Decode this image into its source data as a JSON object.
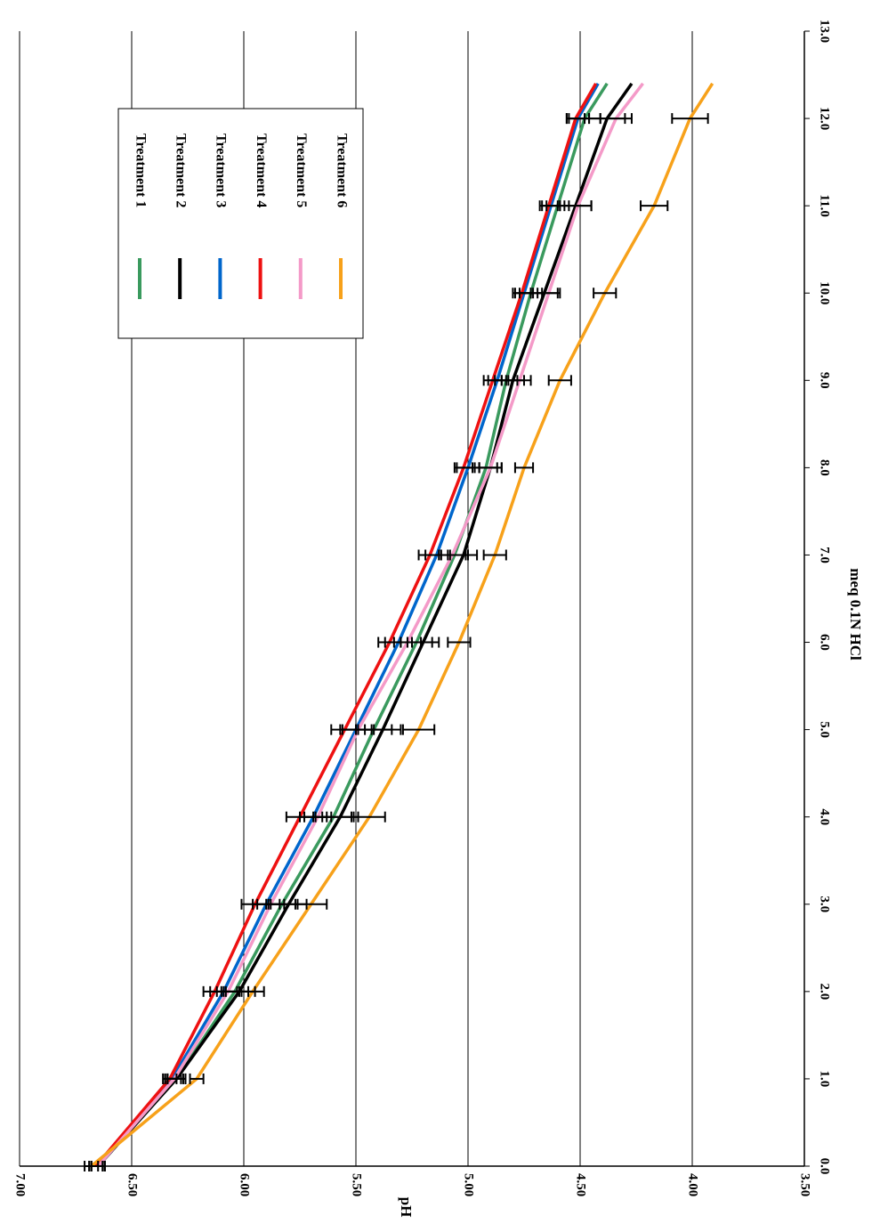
{
  "chart_data": {
    "type": "line",
    "x_label": "meq 0.1N HCl",
    "y_label": "pH",
    "x": [
      0,
      1,
      2,
      3,
      4,
      5,
      6,
      7,
      8,
      9,
      10,
      11,
      12,
      12.4
    ],
    "xlim": [
      0,
      13
    ],
    "xticks": [
      {
        "value": 0,
        "label": "0.0"
      },
      {
        "value": 1,
        "label": "1.0"
      },
      {
        "value": 2,
        "label": "2.0"
      },
      {
        "value": 3,
        "label": "3.0"
      },
      {
        "value": 4,
        "label": "4.0"
      },
      {
        "value": 5,
        "label": "5.0"
      },
      {
        "value": 6,
        "label": "6.0"
      },
      {
        "value": 7,
        "label": "7.0"
      },
      {
        "value": 8,
        "label": "8.0"
      },
      {
        "value": 9,
        "label": "9.0"
      },
      {
        "value": 10,
        "label": "10.0"
      },
      {
        "value": 11,
        "label": "11.0"
      },
      {
        "value": 12,
        "label": "12.0"
      },
      {
        "value": 13,
        "label": "13.0"
      }
    ],
    "ylim": [
      3.5,
      7
    ],
    "yticks": [
      {
        "value": 3.5,
        "label": "3.50"
      },
      {
        "value": 4,
        "label": "4.00"
      },
      {
        "value": 4.5,
        "label": "4.50"
      },
      {
        "value": 5,
        "label": "5.00"
      },
      {
        "value": 5.5,
        "label": "5.50"
      },
      {
        "value": 6,
        "label": "6.00"
      },
      {
        "value": 6.5,
        "label": "6.50"
      },
      {
        "value": 7,
        "label": "7.00"
      }
    ],
    "y_reversed": true,
    "grid": true,
    "series": [
      {
        "name": "Treatment 1",
        "color": "#3a9a5e",
        "values": [
          6.65,
          6.3,
          6.04,
          5.83,
          5.6,
          5.42,
          5.23,
          5.06,
          4.92,
          4.83,
          4.72,
          4.6,
          4.48,
          4.38
        ],
        "errors": [
          0.03,
          0.04,
          0.06,
          0.07,
          0.08,
          0.08,
          0.07,
          0.06,
          0.05,
          0.05,
          0.05,
          0.05,
          0.07,
          null
        ]
      },
      {
        "name": "Treatment 2",
        "color": "#000000",
        "values": [
          6.65,
          6.3,
          6.02,
          5.8,
          5.57,
          5.38,
          5.2,
          5.02,
          4.9,
          4.8,
          4.66,
          4.52,
          4.38,
          4.27
        ],
        "errors": [
          0.03,
          0.04,
          0.07,
          0.08,
          0.08,
          0.08,
          0.07,
          0.06,
          0.05,
          0.05,
          0.06,
          0.07,
          0.08,
          null
        ]
      },
      {
        "name": "Treatment 3",
        "color": "#0066cc",
        "values": [
          6.65,
          6.32,
          6.09,
          5.9,
          5.69,
          5.5,
          5.31,
          5.14,
          5.0,
          4.87,
          4.75,
          4.63,
          4.51,
          4.42
        ],
        "errors": [
          0.03,
          0.04,
          0.06,
          0.06,
          0.06,
          0.07,
          0.06,
          0.05,
          0.05,
          0.04,
          0.04,
          0.04,
          0.05,
          null
        ]
      },
      {
        "name": "Treatment 4",
        "color": "#ee1111",
        "values": [
          6.66,
          6.33,
          6.13,
          5.95,
          5.75,
          5.55,
          5.35,
          5.17,
          5.02,
          4.89,
          4.76,
          4.64,
          4.52,
          4.43
        ],
        "errors": [
          0.03,
          0.03,
          0.05,
          0.06,
          0.06,
          0.06,
          0.05,
          0.05,
          0.04,
          0.04,
          0.04,
          0.04,
          0.04,
          null
        ]
      },
      {
        "name": "Treatment 5",
        "color": "#f49ac8",
        "values": [
          6.65,
          6.31,
          6.07,
          5.88,
          5.67,
          5.49,
          5.27,
          5.07,
          4.9,
          4.77,
          4.64,
          4.51,
          4.34,
          4.22
        ],
        "errors": [
          0.03,
          0.04,
          0.05,
          0.06,
          0.06,
          0.07,
          0.06,
          0.06,
          0.05,
          0.05,
          0.05,
          0.06,
          0.07,
          null
        ]
      },
      {
        "name": "Treatment 6",
        "color": "#f7a11a",
        "values": [
          6.68,
          6.21,
          5.96,
          5.7,
          5.44,
          5.22,
          5.04,
          4.88,
          4.75,
          4.59,
          4.39,
          4.17,
          4.01,
          3.91
        ],
        "errors": [
          0.03,
          0.03,
          0.05,
          0.07,
          0.07,
          0.07,
          0.05,
          0.05,
          0.04,
          0.05,
          0.05,
          0.06,
          0.08,
          null
        ]
      }
    ]
  }
}
